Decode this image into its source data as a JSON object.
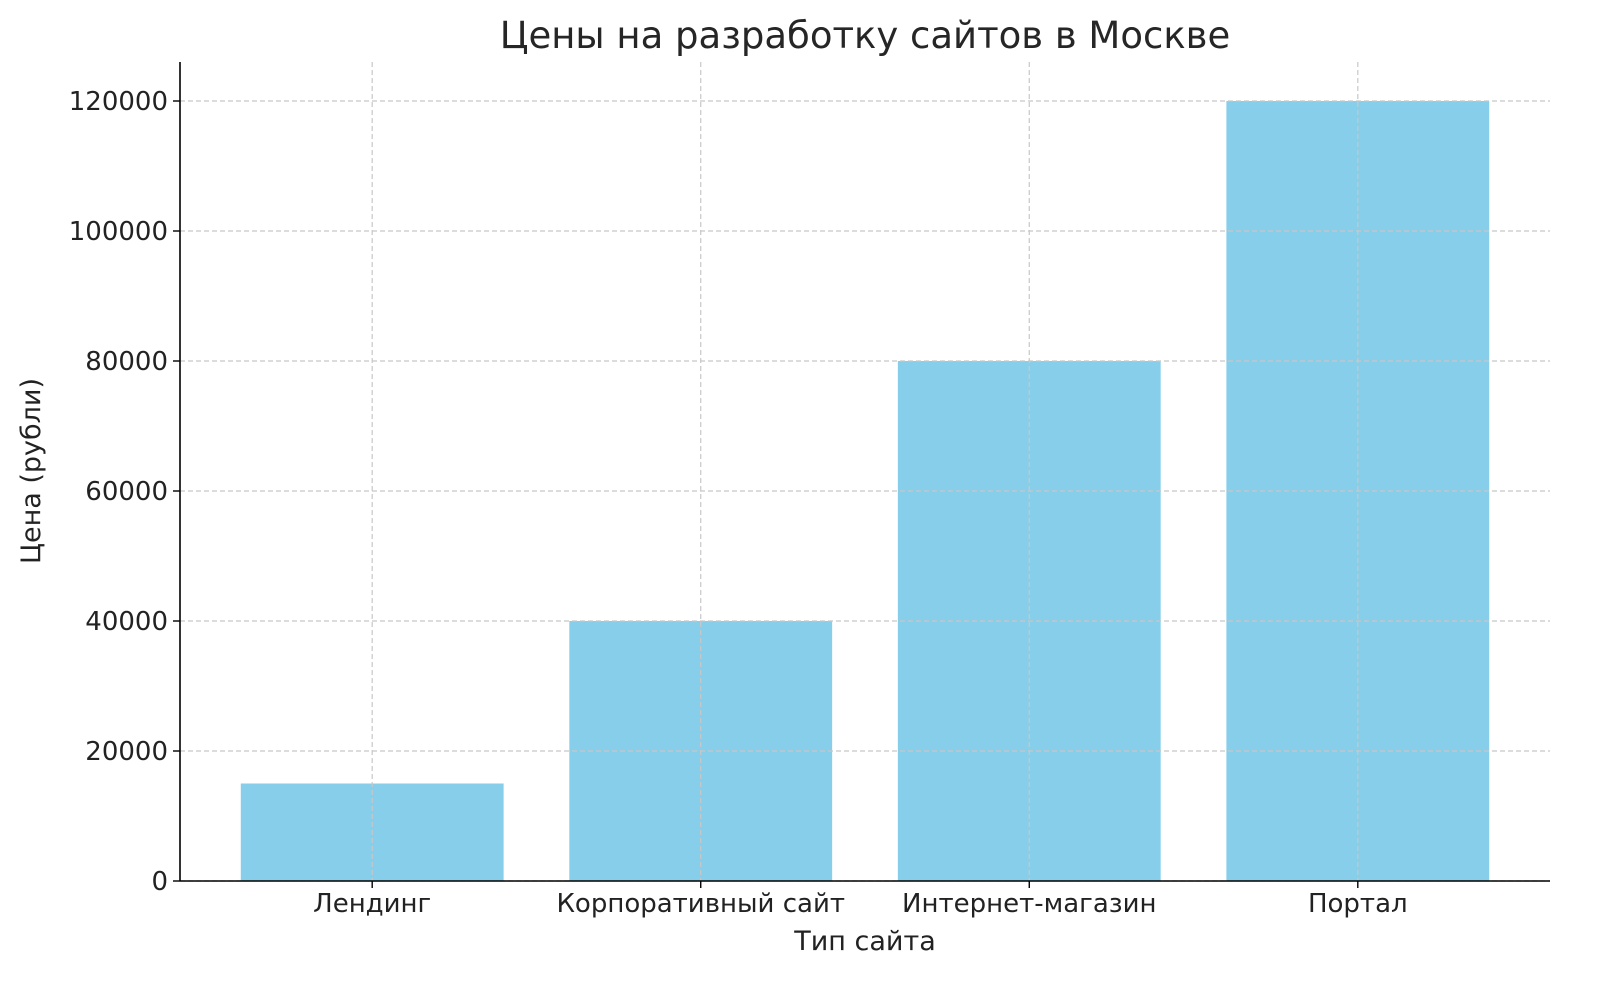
{
  "chart_data": {
    "type": "bar",
    "title": "Цены на разработку сайтов в Москве",
    "xlabel": "Тип сайта",
    "ylabel": "Цена (рубли)",
    "categories": [
      "Лендинг",
      "Корпоративный сайт",
      "Интернет-магазин",
      "Портал"
    ],
    "values": [
      15000,
      40000,
      80000,
      120000
    ],
    "ylim": [
      0,
      126000
    ],
    "yticks": [
      0,
      20000,
      40000,
      60000,
      80000,
      100000,
      120000
    ],
    "grid": true,
    "bar_color": "#87CEEB"
  }
}
